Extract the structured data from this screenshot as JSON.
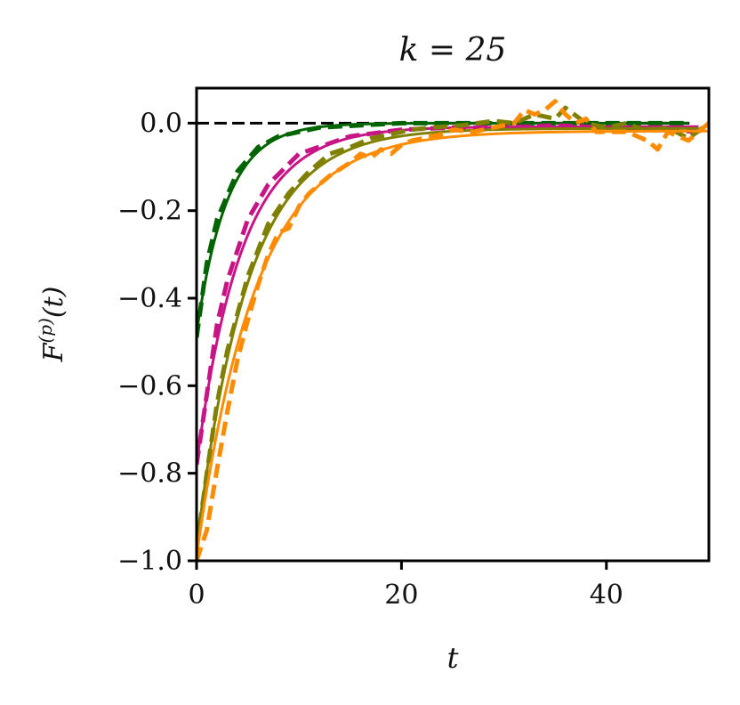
{
  "chart_data": {
    "type": "line",
    "title": "k = 25",
    "xlabel": "t",
    "ylabel": "F^(p)(t)",
    "xlim": [
      0,
      50
    ],
    "ylim": [
      -1.0,
      0.08
    ],
    "grid": false,
    "x_ticks": [
      0,
      20,
      40
    ],
    "x_tick_labels": [
      "0",
      "20",
      "40"
    ],
    "y_ticks": [
      0.0,
      -0.2,
      -0.4,
      -0.6,
      -0.8,
      -1.0
    ],
    "y_tick_labels": [
      "0.0",
      "−0.2",
      "−0.4",
      "−0.6",
      "−0.8",
      "−1.0"
    ],
    "reference_line": {
      "y": 0,
      "color": "#000000",
      "style": "dashed"
    },
    "series": [
      {
        "color": "#006400",
        "style": "solid",
        "amplitude": -0.48,
        "tau": 3.0,
        "offset": 0.0,
        "t_end": 48
      },
      {
        "color": "#006400",
        "style": "dashed",
        "points": [
          [
            0,
            -0.49
          ],
          [
            1,
            -0.32
          ],
          [
            2,
            -0.22
          ],
          [
            4,
            -0.11
          ],
          [
            6,
            -0.055
          ],
          [
            8,
            -0.03
          ],
          [
            12,
            -0.01
          ],
          [
            20,
            0.0
          ],
          [
            30,
            0.0
          ],
          [
            40,
            0.0
          ],
          [
            48,
            0.0
          ]
        ]
      },
      {
        "color": "#C71585",
        "style": "solid",
        "amplitude": -0.78,
        "tau": 4.4,
        "offset": -0.008,
        "t_end": 49
      },
      {
        "color": "#C71585",
        "style": "dashed",
        "points": [
          [
            0,
            -0.78
          ],
          [
            1,
            -0.62
          ],
          [
            2,
            -0.46
          ],
          [
            3,
            -0.36
          ],
          [
            5,
            -0.22
          ],
          [
            7,
            -0.14
          ],
          [
            10,
            -0.07
          ],
          [
            15,
            -0.03
          ],
          [
            20,
            -0.015
          ],
          [
            25,
            -0.01
          ],
          [
            30,
            -0.01
          ],
          [
            35,
            -0.005
          ],
          [
            40,
            -0.01
          ],
          [
            45,
            -0.015
          ],
          [
            49,
            -0.02
          ]
        ]
      },
      {
        "color": "#808000",
        "style": "solid",
        "amplitude": -0.97,
        "tau": 5.0,
        "offset": -0.012,
        "t_end": 49
      },
      {
        "color": "#808000",
        "style": "dashed",
        "points": [
          [
            0,
            -0.97
          ],
          [
            1,
            -0.8
          ],
          [
            2,
            -0.64
          ],
          [
            3,
            -0.52
          ],
          [
            5,
            -0.35
          ],
          [
            7,
            -0.23
          ],
          [
            9,
            -0.16
          ],
          [
            11,
            -0.11
          ],
          [
            13,
            -0.07
          ],
          [
            15,
            -0.055
          ],
          [
            17,
            -0.035
          ],
          [
            19,
            -0.025
          ],
          [
            21,
            -0.015
          ],
          [
            23,
            -0.01
          ],
          [
            26,
            -0.005
          ],
          [
            29,
            0.005
          ],
          [
            31,
            0.0
          ],
          [
            33,
            0.02
          ],
          [
            35,
            0.01
          ],
          [
            36,
            0.035
          ],
          [
            38,
            0.0
          ],
          [
            40,
            -0.01
          ],
          [
            42,
            0.0
          ],
          [
            44,
            -0.02
          ],
          [
            46,
            -0.01
          ],
          [
            48,
            -0.035
          ],
          [
            50,
            0.0
          ]
        ]
      },
      {
        "color": "#FF8C00",
        "style": "solid",
        "amplitude": -0.99,
        "tau": 5.8,
        "offset": -0.018,
        "t_end": 50
      },
      {
        "color": "#FF8C00",
        "style": "dashed",
        "points": [
          [
            0,
            -1.0
          ],
          [
            1,
            -0.93
          ],
          [
            2,
            -0.79
          ],
          [
            3,
            -0.66
          ],
          [
            4,
            -0.54
          ],
          [
            5,
            -0.45
          ],
          [
            6,
            -0.37
          ],
          [
            7,
            -0.3
          ],
          [
            8,
            -0.25
          ],
          [
            9,
            -0.24
          ],
          [
            10,
            -0.19
          ],
          [
            11,
            -0.16
          ],
          [
            12,
            -0.14
          ],
          [
            13,
            -0.12
          ],
          [
            14,
            -0.105
          ],
          [
            15,
            -0.09
          ],
          [
            16,
            -0.07
          ],
          [
            17,
            -0.08
          ],
          [
            18,
            -0.06
          ],
          [
            19,
            -0.07
          ],
          [
            20,
            -0.05
          ],
          [
            21,
            -0.04
          ],
          [
            22,
            -0.035
          ],
          [
            23,
            -0.03
          ],
          [
            24,
            -0.025
          ],
          [
            25,
            -0.015
          ],
          [
            27,
            -0.02
          ],
          [
            29,
            -0.01
          ],
          [
            31,
            0.0
          ],
          [
            32,
            0.03
          ],
          [
            33,
            0.02
          ],
          [
            34,
            0.03
          ],
          [
            35,
            0.05
          ],
          [
            36,
            0.02
          ],
          [
            37,
            0.0
          ],
          [
            38,
            0.01
          ],
          [
            39,
            -0.02
          ],
          [
            40,
            -0.02
          ],
          [
            42,
            -0.02
          ],
          [
            44,
            -0.04
          ],
          [
            45,
            -0.06
          ],
          [
            46,
            -0.02
          ],
          [
            48,
            -0.04
          ],
          [
            50,
            0.0
          ]
        ]
      }
    ]
  }
}
